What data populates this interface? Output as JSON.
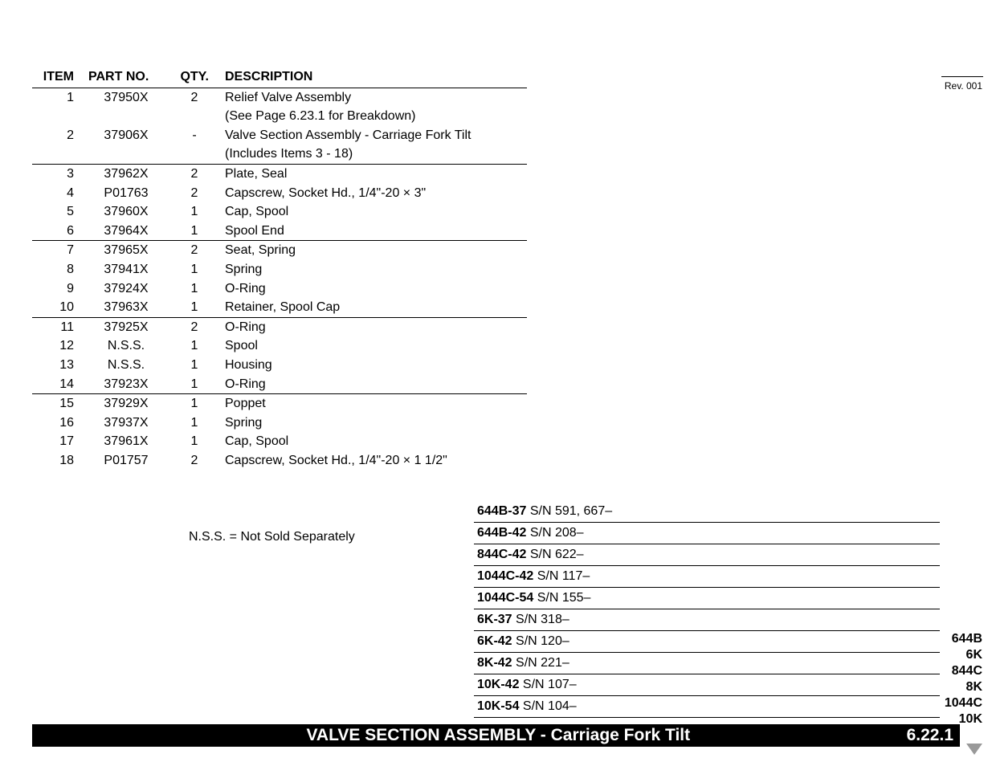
{
  "revision": "Rev. 001",
  "table": {
    "headers": {
      "item": "ITEM",
      "partno": "PART NO.",
      "qty": "QTY.",
      "desc": "DESCRIPTION"
    },
    "rows": [
      {
        "item": "1",
        "partno": "37950X",
        "qty": "2",
        "desc": "Relief Valve Assembly",
        "sep": false
      },
      {
        "item": "",
        "partno": "",
        "qty": "",
        "desc": "(See Page 6.23.1 for Breakdown)",
        "sep": false
      },
      {
        "item": "2",
        "partno": "37906X",
        "qty": "-",
        "desc": "Valve Section Assembly - Carriage Fork Tilt",
        "sep": false
      },
      {
        "item": "",
        "partno": "",
        "qty": "",
        "desc": " (Includes Items 3 - 18)",
        "sep": false
      },
      {
        "item": "3",
        "partno": "37962X",
        "qty": "2",
        "desc": "Plate, Seal",
        "sep": true
      },
      {
        "item": "4",
        "partno": "P01763",
        "qty": "2",
        "desc": "Capscrew, Socket Hd., 1/4\"-20 × 3\"",
        "sep": false
      },
      {
        "item": "5",
        "partno": "37960X",
        "qty": "1",
        "desc": "Cap, Spool",
        "sep": false
      },
      {
        "item": "6",
        "partno": "37964X",
        "qty": "1",
        "desc": "Spool End",
        "sep": false
      },
      {
        "item": "7",
        "partno": "37965X",
        "qty": "2",
        "desc": "Seat, Spring",
        "sep": true
      },
      {
        "item": "8",
        "partno": "37941X",
        "qty": "1",
        "desc": "Spring",
        "sep": false
      },
      {
        "item": "9",
        "partno": "37924X",
        "qty": "1",
        "desc": "O-Ring",
        "sep": false
      },
      {
        "item": "10",
        "partno": "37963X",
        "qty": "1",
        "desc": "Retainer, Spool Cap",
        "sep": false
      },
      {
        "item": "11",
        "partno": "37925X",
        "qty": "2",
        "desc": "O-Ring",
        "sep": true
      },
      {
        "item": "12",
        "partno": "N.S.S.",
        "qty": "1",
        "desc": "Spool",
        "sep": false
      },
      {
        "item": "13",
        "partno": "N.S.S.",
        "qty": "1",
        "desc": "Housing",
        "sep": false
      },
      {
        "item": "14",
        "partno": "37923X",
        "qty": "1",
        "desc": "O-Ring",
        "sep": false
      },
      {
        "item": "15",
        "partno": "37929X",
        "qty": "1",
        "desc": "Poppet",
        "sep": true
      },
      {
        "item": "16",
        "partno": "37937X",
        "qty": "1",
        "desc": "Spring",
        "sep": false
      },
      {
        "item": "17",
        "partno": "37961X",
        "qty": "1",
        "desc": "Cap, Spool",
        "sep": false
      },
      {
        "item": "18",
        "partno": "P01757",
        "qty": "2",
        "desc": "Capscrew, Socket Hd., 1/4\"-20 × 1 1/2\"",
        "sep": false
      }
    ]
  },
  "nss_note": "N.S.S. = Not Sold Separately",
  "serial_numbers": [
    {
      "model": "644B-37",
      "sn": "S/N 591, 667–"
    },
    {
      "model": "644B-42",
      "sn": "S/N 208–"
    },
    {
      "model": "844C-42",
      "sn": "S/N 622–"
    },
    {
      "model": "1044C-42",
      "sn": "S/N 117–"
    },
    {
      "model": "1044C-54",
      "sn": "S/N 155–"
    },
    {
      "model": "6K-37",
      "sn": "S/N 318–"
    },
    {
      "model": "6K-42",
      "sn": "S/N 120–"
    },
    {
      "model": "8K-42",
      "sn": "S/N 221–"
    },
    {
      "model": "10K-42",
      "sn": "S/N 107–"
    },
    {
      "model": "10K-54",
      "sn": "S/N 104–"
    }
  ],
  "model_list": [
    "644B",
    "6K",
    "844C",
    "8K",
    "1044C",
    "10K"
  ],
  "footer": {
    "title": "VALVE SECTION ASSEMBLY - Carriage Fork Tilt",
    "section": "6.22.1"
  }
}
